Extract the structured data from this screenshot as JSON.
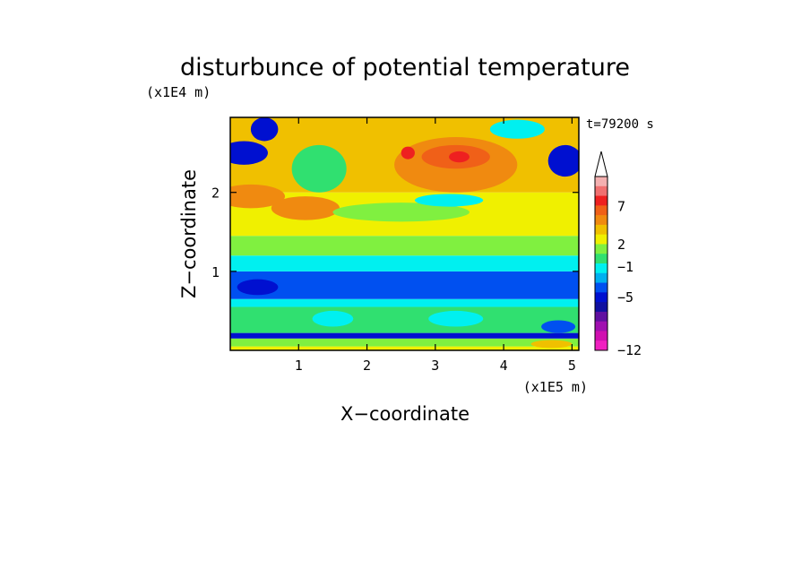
{
  "chart_data": {
    "type": "heatmap",
    "title": "disturbunce of potential temperature",
    "xlabel": "X−coordinate",
    "ylabel": "Z−coordinate",
    "x_unit": "(x1E5 m)",
    "y_unit": "(x1E4 m)",
    "time_label": "t=79200 s",
    "xlim": [
      0,
      5.1
    ],
    "ylim": [
      0,
      2.95
    ],
    "x_ticks": [
      "1",
      "2",
      "3",
      "4",
      "5"
    ],
    "x_tick_values": [
      1,
      2,
      3,
      4,
      5
    ],
    "y_ticks": [
      "1",
      "2"
    ],
    "y_tick_values": [
      1,
      2
    ],
    "colorbar": {
      "tick_labels": [
        "7",
        "2",
        "−1",
        "−5",
        "−12"
      ],
      "tick_values": [
        7,
        2,
        -1,
        -5,
        -12
      ],
      "min": -12,
      "max": 11,
      "extend": "max",
      "levels": [
        {
          "color": "#f4b0b0"
        },
        {
          "color": "#f07070"
        },
        {
          "color": "#ee2020"
        },
        {
          "color": "#f06018"
        },
        {
          "color": "#f08a10"
        },
        {
          "color": "#f0c000"
        },
        {
          "color": "#f0f000"
        },
        {
          "color": "#80f040"
        },
        {
          "color": "#30e070"
        },
        {
          "color": "#00f0f0"
        },
        {
          "color": "#00b0f0"
        },
        {
          "color": "#0050f0"
        },
        {
          "color": "#0010d0"
        },
        {
          "color": "#1010a0"
        },
        {
          "color": "#6010a0"
        },
        {
          "color": "#a010b0"
        },
        {
          "color": "#d010b0"
        },
        {
          "color": "#f020c0"
        }
      ]
    },
    "bands": [
      {
        "z_min": 0.0,
        "z_max": 0.05,
        "color": "#f0f000"
      },
      {
        "z_min": 0.05,
        "z_max": 0.15,
        "color": "#80f040"
      },
      {
        "z_min": 0.15,
        "z_max": 0.22,
        "color": "#0010d0"
      },
      {
        "z_min": 0.22,
        "z_max": 0.55,
        "color": "#30e070"
      },
      {
        "z_min": 0.55,
        "z_max": 0.65,
        "color": "#00f0f0"
      },
      {
        "z_min": 0.65,
        "z_max": 1.0,
        "color": "#0050f0"
      },
      {
        "z_min": 1.0,
        "z_max": 1.2,
        "color": "#00f0f0"
      },
      {
        "z_min": 1.2,
        "z_max": 1.45,
        "color": "#80f040"
      },
      {
        "z_min": 1.45,
        "z_max": 2.0,
        "color": "#f0f000"
      },
      {
        "z_min": 2.0,
        "z_max": 2.95,
        "color": "#f0c000"
      }
    ],
    "features": [
      {
        "x": 3.3,
        "z": 2.35,
        "rx": 0.9,
        "rz": 0.35,
        "color": "#f08a10"
      },
      {
        "x": 3.3,
        "z": 2.45,
        "rx": 0.5,
        "rz": 0.15,
        "color": "#f06018"
      },
      {
        "x": 3.35,
        "z": 2.45,
        "rx": 0.15,
        "rz": 0.07,
        "color": "#ee2020"
      },
      {
        "x": 2.6,
        "z": 2.5,
        "rx": 0.1,
        "rz": 0.08,
        "color": "#ee2020"
      },
      {
        "x": 0.3,
        "z": 1.95,
        "rx": 0.5,
        "rz": 0.15,
        "color": "#f08a10"
      },
      {
        "x": 1.1,
        "z": 1.8,
        "rx": 0.5,
        "rz": 0.15,
        "color": "#f08a10"
      },
      {
        "x": 0.2,
        "z": 2.5,
        "rx": 0.35,
        "rz": 0.15,
        "color": "#0010d0"
      },
      {
        "x": 0.5,
        "z": 2.8,
        "rx": 0.2,
        "rz": 0.15,
        "color": "#0010d0"
      },
      {
        "x": 4.9,
        "z": 2.4,
        "rx": 0.25,
        "rz": 0.2,
        "color": "#0010d0"
      },
      {
        "x": 4.2,
        "z": 2.8,
        "rx": 0.4,
        "rz": 0.12,
        "color": "#00f0f0"
      },
      {
        "x": 1.3,
        "z": 2.3,
        "rx": 0.4,
        "rz": 0.3,
        "color": "#30e070"
      },
      {
        "x": 2.5,
        "z": 1.75,
        "rx": 1.0,
        "rz": 0.12,
        "color": "#80f040"
      },
      {
        "x": 3.2,
        "z": 1.9,
        "rx": 0.5,
        "rz": 0.08,
        "color": "#00f0f0"
      },
      {
        "x": 0.4,
        "z": 0.8,
        "rx": 0.3,
        "rz": 0.1,
        "color": "#0010d0"
      },
      {
        "x": 1.5,
        "z": 0.4,
        "rx": 0.3,
        "rz": 0.1,
        "color": "#00f0f0"
      },
      {
        "x": 3.3,
        "z": 0.4,
        "rx": 0.4,
        "rz": 0.1,
        "color": "#00f0f0"
      },
      {
        "x": 4.8,
        "z": 0.3,
        "rx": 0.25,
        "rz": 0.08,
        "color": "#0050f0"
      },
      {
        "x": 4.7,
        "z": 0.08,
        "rx": 0.3,
        "rz": 0.05,
        "color": "#f0c000"
      }
    ]
  }
}
